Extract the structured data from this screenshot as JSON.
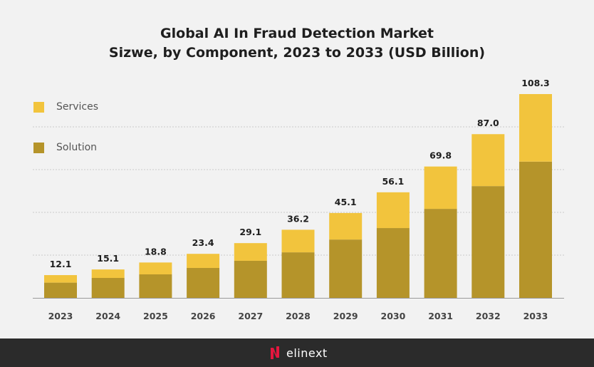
{
  "chart_data": {
    "type": "bar",
    "stacked": true,
    "title": "Global AI In Fraud Detection Market Sizwe, by Component, 2023 to 2033 (USD Billion)",
    "title_lines": [
      "Global AI In Fraud Detection Market",
      "Sizwe, by Component, 2023 to 2033 (USD Billion)"
    ],
    "xlabel": "",
    "ylabel": "",
    "ylim": [
      0,
      113.6
    ],
    "grid_step": 22.72,
    "grid": true,
    "legend_position": "top-left",
    "categories": [
      "2023",
      "2024",
      "2025",
      "2026",
      "2027",
      "2028",
      "2029",
      "2030",
      "2031",
      "2032",
      "2033"
    ],
    "totals": [
      12.1,
      15.1,
      18.8,
      23.4,
      29.1,
      36.2,
      45.1,
      56.1,
      69.8,
      87.0,
      108.3
    ],
    "total_labels": [
      "12.1",
      "15.1",
      "18.8",
      "23.4",
      "29.1",
      "36.2",
      "45.1",
      "56.1",
      "69.8",
      "87.0",
      "108.3"
    ],
    "series": [
      {
        "name": "Solution",
        "color": "#b5942a",
        "values": [
          8.1,
          10.6,
          12.5,
          15.9,
          19.7,
          24.2,
          31.0,
          37.1,
          47.3,
          59.4,
          72.4
        ]
      },
      {
        "name": "Services",
        "color": "#f2c43d",
        "values": [
          4.0,
          4.5,
          6.3,
          7.5,
          9.4,
          12.0,
          14.1,
          19.0,
          22.5,
          27.6,
          35.9
        ]
      }
    ]
  },
  "legend": {
    "services": "Services",
    "solution": "Solution"
  },
  "footer": {
    "brand": "elinext",
    "accent_color": "#e4173e"
  }
}
